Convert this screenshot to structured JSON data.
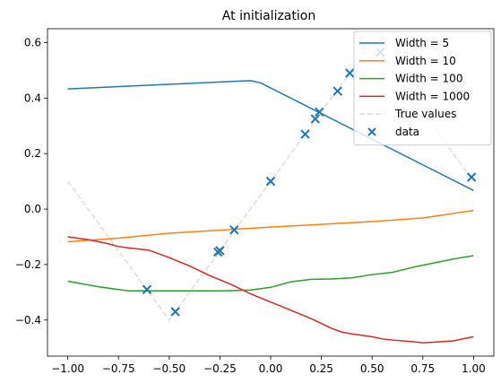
{
  "chart_data": {
    "type": "line",
    "title": "At initialization",
    "xlabel": "",
    "ylabel": "",
    "xlim": [
      -1.1,
      1.1
    ],
    "ylim": [
      -0.53,
      0.65
    ],
    "xticks": [
      -1.0,
      -0.75,
      -0.5,
      -0.25,
      0.0,
      0.25,
      0.5,
      0.75,
      1.0
    ],
    "xtick_labels": [
      "−1.00",
      "−0.75",
      "−0.50",
      "−0.25",
      "0.00",
      "0.25",
      "0.50",
      "0.75",
      "1.00"
    ],
    "yticks": [
      -0.4,
      -0.2,
      0.0,
      0.2,
      0.4,
      0.6
    ],
    "ytick_labels": [
      "−0.4",
      "−0.2",
      "0.0",
      "0.2",
      "0.4",
      "0.6"
    ],
    "grid": false,
    "legend_position": "top-right",
    "series": [
      {
        "name": "Width = 5",
        "kind": "line",
        "color": "#1f77b4",
        "x": [
          -1.0,
          -0.1,
          -0.05,
          1.0
        ],
        "y": [
          0.433,
          0.463,
          0.455,
          0.067
        ]
      },
      {
        "name": "Width = 10",
        "kind": "line",
        "color": "#ff7f0e",
        "x": [
          -1.0,
          -0.75,
          -0.5,
          -0.25,
          0.0,
          0.25,
          0.5,
          0.75,
          1.0
        ],
        "y": [
          -0.118,
          -0.105,
          -0.087,
          -0.076,
          -0.065,
          -0.055,
          -0.045,
          -0.032,
          -0.005
        ]
      },
      {
        "name": "Width = 100",
        "kind": "line",
        "color": "#2ca02c",
        "x": [
          -1.0,
          -0.85,
          -0.7,
          -0.5,
          -0.25,
          -0.1,
          0.0,
          0.1,
          0.2,
          0.3,
          0.4,
          0.5,
          0.6,
          0.7,
          0.8,
          0.9,
          1.0
        ],
        "y": [
          -0.26,
          -0.28,
          -0.295,
          -0.295,
          -0.295,
          -0.292,
          -0.282,
          -0.262,
          -0.253,
          -0.252,
          -0.248,
          -0.236,
          -0.228,
          -0.21,
          -0.195,
          -0.18,
          -0.168
        ]
      },
      {
        "name": "Width = 1000",
        "kind": "line",
        "color": "#d62728",
        "x": [
          -1.0,
          -0.9,
          -0.8,
          -0.75,
          -0.7,
          -0.6,
          -0.5,
          -0.4,
          -0.3,
          -0.2,
          -0.1,
          0.0,
          0.1,
          0.2,
          0.3,
          0.35,
          0.4,
          0.5,
          0.55,
          0.6,
          0.7,
          0.75,
          0.8,
          0.9,
          1.0
        ],
        "y": [
          -0.1,
          -0.11,
          -0.125,
          -0.135,
          -0.14,
          -0.148,
          -0.175,
          -0.205,
          -0.24,
          -0.27,
          -0.305,
          -0.335,
          -0.365,
          -0.395,
          -0.43,
          -0.443,
          -0.45,
          -0.46,
          -0.468,
          -0.472,
          -0.478,
          -0.482,
          -0.48,
          -0.475,
          -0.46
        ]
      },
      {
        "name": "True values",
        "kind": "dashed",
        "color": "#dddddd",
        "x": [
          -1.0,
          -0.5,
          0.5,
          1.0
        ],
        "y": [
          0.1,
          -0.4,
          0.6,
          0.1
        ]
      },
      {
        "name": "data",
        "kind": "scatter",
        "color": "#1f77b4",
        "x": [
          -0.61,
          -0.47,
          -0.26,
          -0.25,
          -0.18,
          0.0,
          0.17,
          0.22,
          0.24,
          0.33,
          0.39,
          0.54,
          0.99
        ],
        "y": [
          -0.29,
          -0.37,
          -0.155,
          -0.15,
          -0.075,
          0.1,
          0.27,
          0.325,
          0.35,
          0.425,
          0.49,
          0.565,
          0.115
        ]
      }
    ]
  }
}
